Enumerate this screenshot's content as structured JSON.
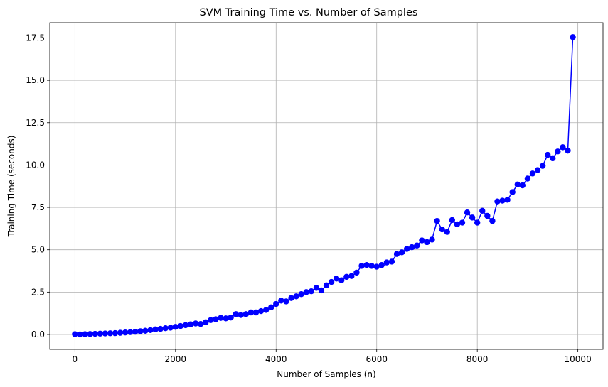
{
  "chart_data": {
    "type": "line",
    "title": "SVM Training Time vs. Number of Samples",
    "xlabel": "Number of Samples (n)",
    "ylabel": "Training Time (seconds)",
    "xlim": [
      -500,
      10500
    ],
    "ylim": [
      -0.88,
      18.4
    ],
    "xticks": [
      0,
      2000,
      4000,
      6000,
      8000,
      10000
    ],
    "xtick_labels": [
      "0",
      "2000",
      "4000",
      "6000",
      "8000",
      "10000"
    ],
    "yticks": [
      0,
      2.5,
      5,
      7.5,
      10,
      12.5,
      15,
      17.5
    ],
    "ytick_labels": [
      "0.0",
      "2.5",
      "5.0",
      "7.5",
      "10.0",
      "12.5",
      "15.0",
      "17.5"
    ],
    "grid": true,
    "series": [
      {
        "color": "#0000ff",
        "marker": "circle",
        "x": [
          0,
          100,
          200,
          300,
          400,
          500,
          600,
          700,
          800,
          900,
          1000,
          1100,
          1200,
          1300,
          1400,
          1500,
          1600,
          1700,
          1800,
          1900,
          2000,
          2100,
          2200,
          2300,
          2400,
          2500,
          2600,
          2700,
          2800,
          2900,
          3000,
          3100,
          3200,
          3300,
          3400,
          3500,
          3600,
          3700,
          3800,
          3900,
          4000,
          4100,
          4200,
          4300,
          4400,
          4500,
          4600,
          4700,
          4800,
          4900,
          5000,
          5100,
          5200,
          5300,
          5400,
          5500,
          5600,
          5700,
          5800,
          5900,
          6000,
          6100,
          6200,
          6300,
          6400,
          6500,
          6600,
          6700,
          6800,
          6900,
          7000,
          7100,
          7200,
          7300,
          7400,
          7500,
          7600,
          7700,
          7800,
          7900,
          8000,
          8100,
          8200,
          8300,
          8400,
          8500,
          8600,
          8700,
          8800,
          8900,
          9000,
          9100,
          9200,
          9300,
          9400,
          9500,
          9600,
          9700,
          9800,
          9900
        ],
        "y": [
          0.02,
          0.0,
          0.02,
          0.03,
          0.04,
          0.05,
          0.06,
          0.07,
          0.08,
          0.1,
          0.12,
          0.14,
          0.16,
          0.19,
          0.22,
          0.26,
          0.3,
          0.33,
          0.37,
          0.4,
          0.45,
          0.5,
          0.55,
          0.6,
          0.65,
          0.62,
          0.72,
          0.85,
          0.9,
          0.98,
          0.95,
          1.0,
          1.2,
          1.15,
          1.2,
          1.3,
          1.3,
          1.38,
          1.45,
          1.6,
          1.8,
          2.0,
          1.95,
          2.15,
          2.25,
          2.38,
          2.5,
          2.55,
          2.75,
          2.6,
          2.9,
          3.1,
          3.3,
          3.2,
          3.4,
          3.45,
          3.65,
          4.05,
          4.1,
          4.05,
          4.0,
          4.1,
          4.25,
          4.3,
          4.75,
          4.85,
          5.05,
          5.15,
          5.25,
          5.55,
          5.45,
          5.6,
          6.7,
          6.2,
          6.05,
          6.75,
          6.5,
          6.6,
          7.2,
          6.9,
          6.6,
          7.3,
          7.0,
          6.7,
          7.85,
          7.9,
          7.95,
          8.4,
          8.85,
          8.8,
          9.2,
          9.5,
          9.7,
          9.95,
          10.6,
          10.4,
          10.8,
          11.05,
          10.85,
          17.55
        ]
      }
    ]
  }
}
